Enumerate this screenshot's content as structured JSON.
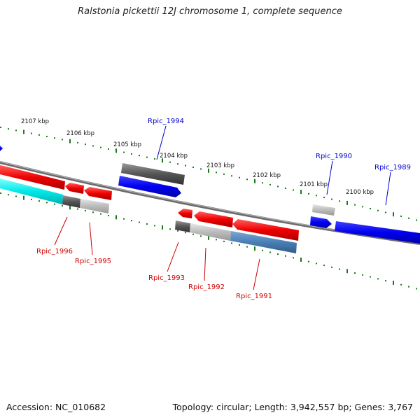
{
  "title": "Ralstonia pickettii 12J chromosome 1, complete sequence",
  "footer": {
    "accession": "Accession: NC_010682",
    "summary": "Topology: circular; Length: 3,942,557 bp; Genes: 3,767"
  },
  "scale_labels": [
    "2107 kbp",
    "2106 kbp",
    "2105 kbp",
    "2104 kbp",
    "2103 kbp",
    "2102 kbp",
    "2101 kbp",
    "2100 kbp"
  ],
  "genes_forward": [
    "Rpic_1994",
    "Rpic_1990",
    "Rpic_1989"
  ],
  "genes_reverse": [
    "Rpic_1996",
    "Rpic_1995",
    "Rpic_1993",
    "Rpic_1992",
    "Rpic_1991"
  ],
  "colors": {
    "forward_label": "#0000cc",
    "reverse_label": "#cc0000",
    "backbone": "#888888",
    "tick": "#1a7a1a"
  }
}
